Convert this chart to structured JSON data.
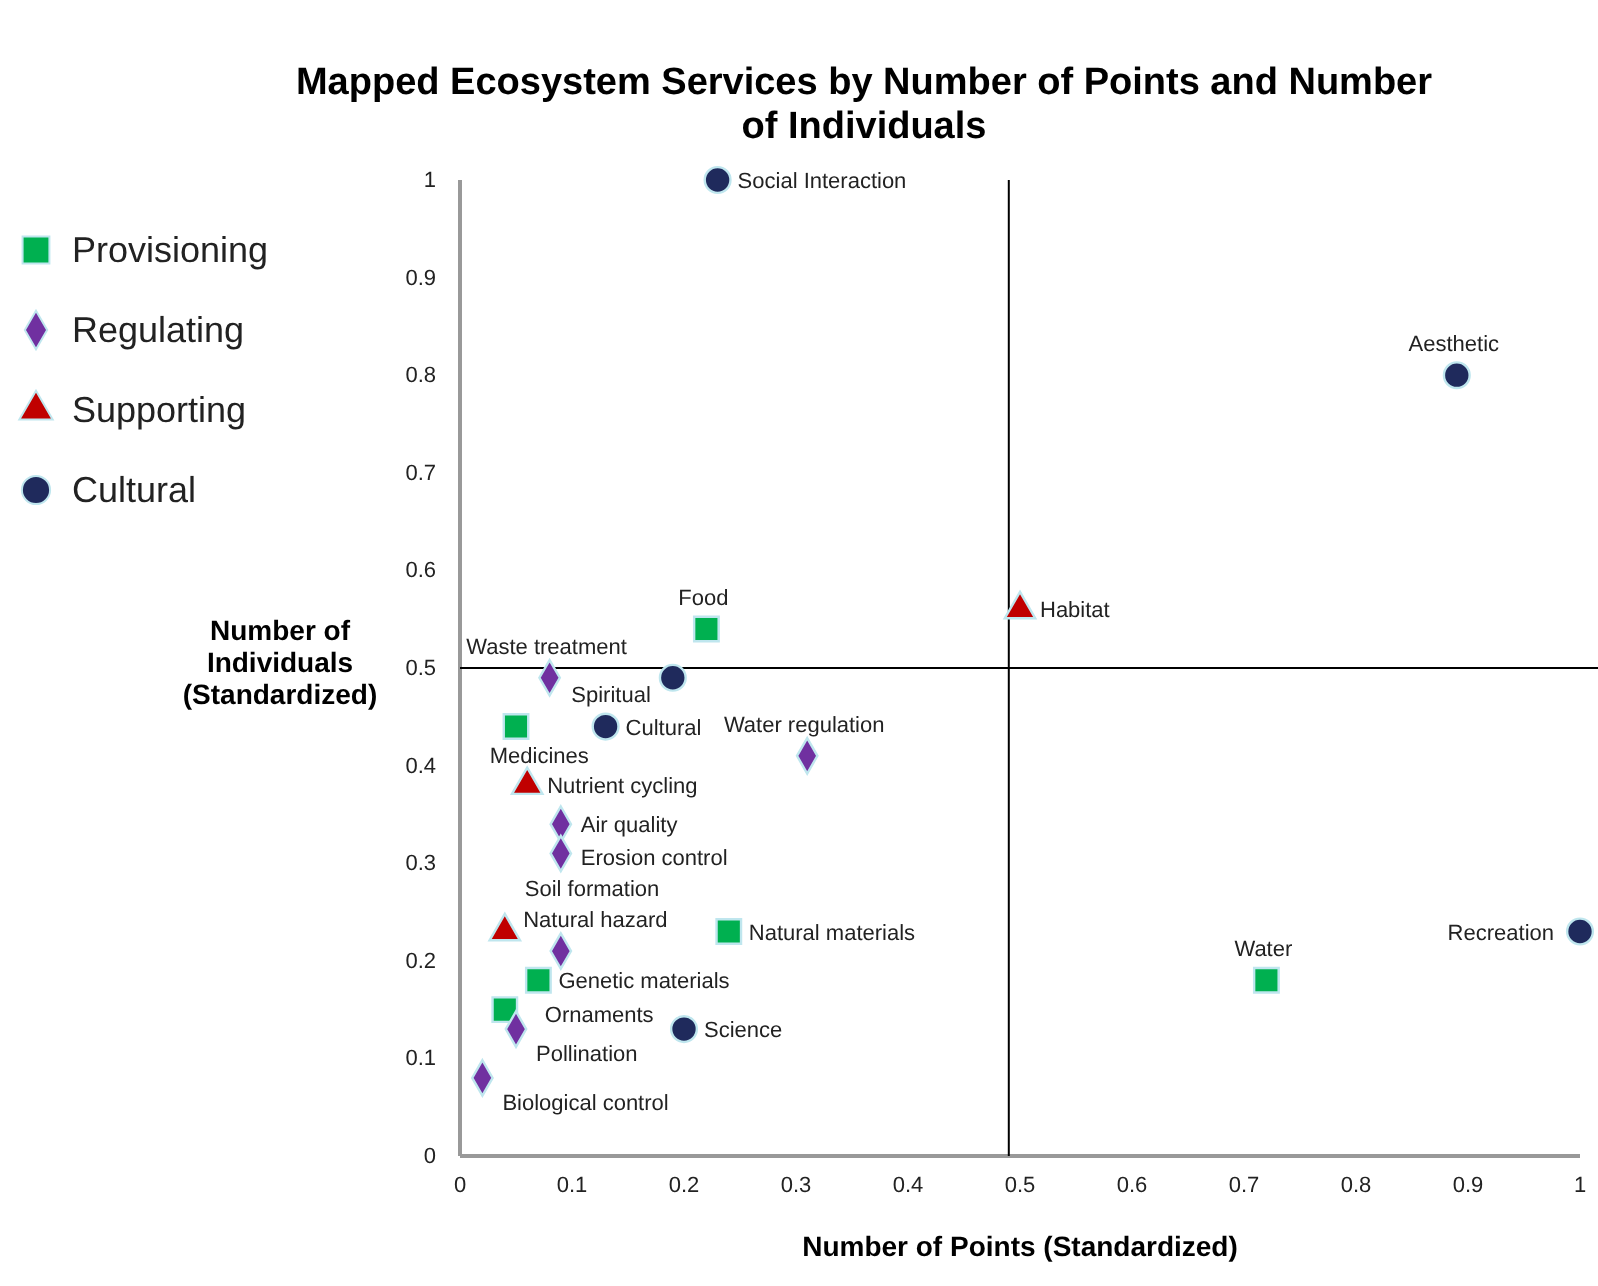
{
  "chart_data": {
    "type": "scatter",
    "title": "Mapped Ecosystem Services by Number of Points and Number of Individuals",
    "xlabel": "Number of Points (Standardized)",
    "ylabel": "Number of Individuals (Standardized)",
    "xlim": [
      0,
      1
    ],
    "ylim": [
      0,
      1
    ],
    "xticks": [
      0,
      0.1,
      0.2,
      0.3,
      0.4,
      0.5,
      0.6,
      0.7,
      0.8,
      0.9,
      1
    ],
    "yticks": [
      0,
      0.1,
      0.2,
      0.3,
      0.4,
      0.5,
      0.6,
      0.7,
      0.8,
      0.9,
      1
    ],
    "grid": false,
    "legend": "left",
    "series": [
      {
        "name": "Provisioning",
        "color": "#00b050",
        "marker": "square",
        "x": [
          0.22,
          0.05,
          0.24,
          0.07,
          0.04,
          0.72
        ],
        "values": [
          0.54,
          0.44,
          0.23,
          0.18,
          0.15,
          0.18
        ]
      },
      {
        "name": "Regulating",
        "color": "#7030a0",
        "marker": "diamond",
        "x": [
          0.08,
          0.31,
          0.09,
          0.09,
          0.09,
          0.05,
          0.02
        ],
        "values": [
          0.49,
          0.41,
          0.34,
          0.31,
          0.21,
          0.13,
          0.08
        ]
      },
      {
        "name": "Supporting",
        "color": "#c00000",
        "marker": "triangle",
        "x": [
          0.5,
          0.06,
          0.04
        ],
        "values": [
          0.56,
          0.38,
          0.23
        ]
      },
      {
        "name": "Cultural",
        "color": "#1f2a5c",
        "marker": "circle",
        "x": [
          0.23,
          0.89,
          0.19,
          0.13,
          0.2,
          1
        ],
        "values": [
          1,
          0.8,
          0.49,
          0.44,
          0.13,
          0.23
        ]
      }
    ],
    "ref_lines": [
      {
        "axis": "x",
        "value": 0.49,
        "color": "#000000"
      },
      {
        "axis": "y",
        "value": 0.5,
        "color": "#000000"
      }
    ],
    "annotations": [
      {
        "text": "Food",
        "x": 0.22,
        "y": 0.54
      },
      {
        "text": "Medicines",
        "x": 0.05,
        "y": 0.44
      },
      {
        "text": "Natural materials",
        "x": 0.24,
        "y": 0.23
      },
      {
        "text": "Genetic materials",
        "x": 0.07,
        "y": 0.18
      },
      {
        "text": "Ornaments",
        "x": 0.04,
        "y": 0.15
      },
      {
        "text": "Water",
        "x": 0.72,
        "y": 0.18
      },
      {
        "text": "Waste treatment",
        "x": 0.08,
        "y": 0.49
      },
      {
        "text": "Water regulation",
        "x": 0.31,
        "y": 0.41
      },
      {
        "text": "Air quality",
        "x": 0.09,
        "y": 0.34
      },
      {
        "text": "Erosion control",
        "x": 0.09,
        "y": 0.31
      },
      {
        "text": "Natural hazard",
        "x": 0.09,
        "y": 0.21
      },
      {
        "text": "Pollination",
        "x": 0.05,
        "y": 0.13
      },
      {
        "text": "Biological control",
        "x": 0.02,
        "y": 0.08
      },
      {
        "text": "Habitat",
        "x": 0.5,
        "y": 0.56
      },
      {
        "text": "Nutrient cycling",
        "x": 0.06,
        "y": 0.38
      },
      {
        "text": "Soil formation",
        "x": 0.04,
        "y": 0.23
      },
      {
        "text": "Social Interaction",
        "x": 0.23,
        "y": 1
      },
      {
        "text": "Aesthetic",
        "x": 0.89,
        "y": 0.8
      },
      {
        "text": "Spiritual",
        "x": 0.19,
        "y": 0.49
      },
      {
        "text": "Cultural",
        "x": 0.13,
        "y": 0.44
      },
      {
        "text": "Science",
        "x": 0.2,
        "y": 0.13
      },
      {
        "text": "Recreation",
        "x": 1,
        "y": 0.23
      }
    ]
  }
}
